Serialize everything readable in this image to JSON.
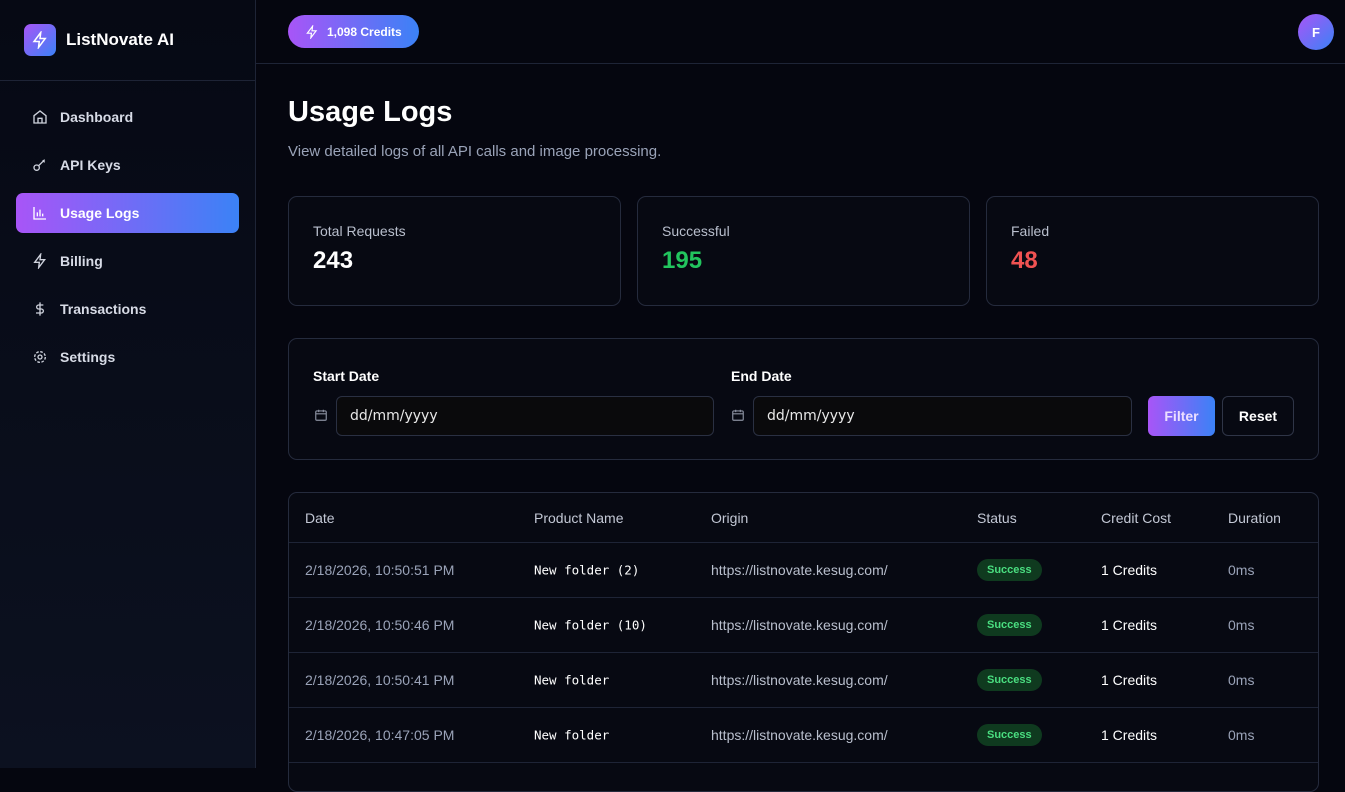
{
  "app": {
    "name": "ListNovate AI",
    "credits": "1,098 Credits",
    "avatar_initial": "F"
  },
  "sidebar": {
    "items": [
      {
        "label": "Dashboard",
        "icon": "home-icon"
      },
      {
        "label": "API Keys",
        "icon": "key-icon"
      },
      {
        "label": "Usage Logs",
        "icon": "bar-chart-icon",
        "active": true
      },
      {
        "label": "Billing",
        "icon": "zap-icon"
      },
      {
        "label": "Transactions",
        "icon": "dollar-icon"
      },
      {
        "label": "Settings",
        "icon": "gear-icon"
      }
    ]
  },
  "page": {
    "title": "Usage Logs",
    "subtitle": "View detailed logs of all API calls and image processing."
  },
  "stats": [
    {
      "label": "Total Requests",
      "value": "243",
      "color": "#ffffff"
    },
    {
      "label": "Successful",
      "value": "195",
      "color": "#22c55e"
    },
    {
      "label": "Failed",
      "value": "48",
      "color": "#f05252"
    }
  ],
  "filter": {
    "start_label": "Start Date",
    "start_placeholder": "dd/mm/yyyy",
    "end_label": "End Date",
    "end_placeholder": "dd/mm/yyyy",
    "filter_button": "Filter",
    "reset_button": "Reset"
  },
  "table": {
    "columns": [
      "Date",
      "Product Name",
      "Origin",
      "Status",
      "Credit Cost",
      "Duration"
    ],
    "rows": [
      [
        "2/18/2026, 10:50:51 PM",
        "New folder (2)",
        "https://listnovate.kesug.com/",
        "Success",
        "1 Credits",
        "0ms"
      ],
      [
        "2/18/2026, 10:50:46 PM",
        "New folder (10)",
        "https://listnovate.kesug.com/",
        "Success",
        "1 Credits",
        "0ms"
      ],
      [
        "2/18/2026, 10:50:41 PM",
        "New folder",
        "https://listnovate.kesug.com/",
        "Success",
        "1 Credits",
        "0ms"
      ],
      [
        "2/18/2026, 10:47:05 PM",
        "New folder",
        "https://listnovate.kesug.com/",
        "Success",
        "1 Credits",
        "0ms"
      ]
    ]
  }
}
